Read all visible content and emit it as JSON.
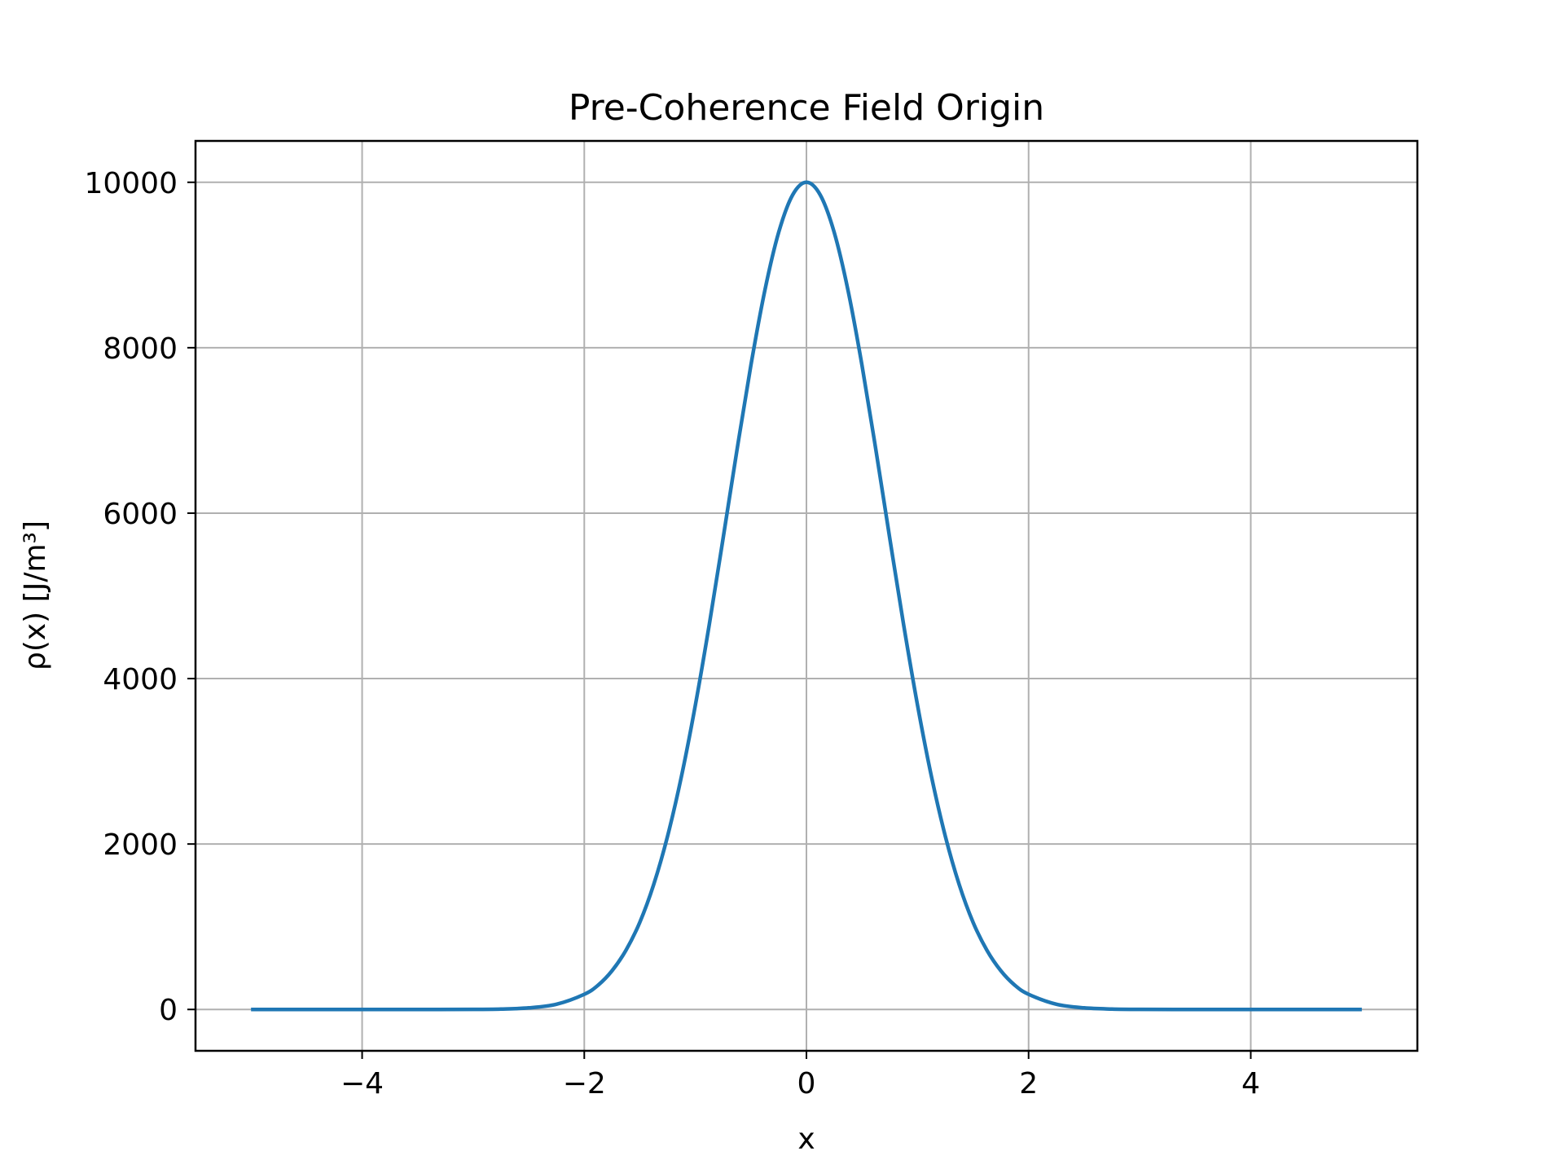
{
  "chart_data": {
    "type": "line",
    "title": "Pre-Coherence Field Origin",
    "xlabel": "x",
    "ylabel": "ρ(x) [J/m³]",
    "xlim": [
      -5.5,
      5.5
    ],
    "ylim": [
      -500,
      10500
    ],
    "grid": true,
    "x_ticks": [
      {
        "value": -4,
        "label": "−4"
      },
      {
        "value": -2,
        "label": "−2"
      },
      {
        "value": 0,
        "label": "0"
      },
      {
        "value": 2,
        "label": "2"
      },
      {
        "value": 4,
        "label": "4"
      }
    ],
    "y_ticks": [
      {
        "value": 0,
        "label": "0"
      },
      {
        "value": 2000,
        "label": "2000"
      },
      {
        "value": 4000,
        "label": "4000"
      },
      {
        "value": 6000,
        "label": "6000"
      },
      {
        "value": 8000,
        "label": "8000"
      },
      {
        "value": 10000,
        "label": "10000"
      }
    ],
    "series": [
      {
        "color": "#1f77b4",
        "x": [
          -5.0,
          -4.5,
          -4.0,
          -3.5,
          -3.0,
          -2.75,
          -2.5,
          -2.25,
          -2.0,
          -1.875,
          -1.75,
          -1.625,
          -1.5,
          -1.375,
          -1.25,
          -1.125,
          -1.0,
          -0.875,
          -0.75,
          -0.625,
          -0.5,
          -0.375,
          -0.25,
          -0.125,
          0.0,
          0.125,
          0.25,
          0.375,
          0.5,
          0.625,
          0.75,
          0.875,
          1.0,
          1.125,
          1.25,
          1.375,
          1.5,
          1.625,
          1.75,
          1.875,
          2.0,
          2.25,
          2.5,
          2.75,
          3.0,
          3.5,
          4.0,
          4.5,
          5.0
        ],
        "y": [
          0,
          0,
          0,
          0,
          1,
          5,
          19,
          63,
          183,
          294,
          468,
          715,
          1054,
          1511,
          2096,
          2819,
          3679,
          4650,
          5698,
          6766,
          7788,
          8689,
          9394,
          9845,
          10000,
          9845,
          9394,
          8689,
          7788,
          6766,
          5698,
          4650,
          3679,
          2819,
          2096,
          1511,
          1054,
          715,
          468,
          294,
          183,
          63,
          19,
          5,
          1,
          0,
          0,
          0,
          0
        ]
      }
    ]
  }
}
